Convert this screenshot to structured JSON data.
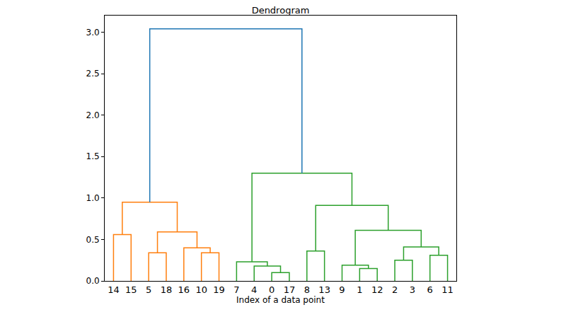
{
  "chart_data": {
    "type": "dendrogram",
    "title": "Dendrogram",
    "x_label": "Index of a data point",
    "categories": [
      "14",
      "15",
      "5",
      "18",
      "16",
      "10",
      "19",
      "7",
      "4",
      "0",
      "17",
      "8",
      "13",
      "9",
      "1",
      "12",
      "2",
      "3",
      "6",
      "11"
    ],
    "ylim": [
      0,
      3.2
    ],
    "yticks": [
      {
        "value": 0,
        "label": "0.0"
      },
      0.5,
      {
        "value": 1,
        "label": "1.0"
      },
      1.5,
      {
        "value": 2,
        "label": "2.0"
      },
      2.5,
      {
        "value": 3,
        "label": "3.0"
      }
    ],
    "grid": false,
    "tree": {
      "height": 3.04,
      "color": "#1f77b4",
      "children": [
        {
          "height": 0.95,
          "color": "#ff7f0e",
          "children": [
            {
              "height": 0.56,
              "color": "#ff7f0e",
              "children": [
                "14",
                "15"
              ]
            },
            {
              "height": 0.59,
              "color": "#ff7f0e",
              "children": [
                {
                  "height": 0.34,
                  "color": "#ff7f0e",
                  "children": [
                    "5",
                    "18"
                  ]
                },
                {
                  "height": 0.4,
                  "color": "#ff7f0e",
                  "children": [
                    "16",
                    {
                      "height": 0.34,
                      "color": "#ff7f0e",
                      "children": [
                        "10",
                        "19"
                      ]
                    }
                  ]
                }
              ]
            }
          ]
        },
        {
          "height": 1.3,
          "color": "#2ca02c",
          "children": [
            {
              "height": 0.23,
              "color": "#2ca02c",
              "children": [
                "7",
                {
                  "height": 0.18,
                  "color": "#2ca02c",
                  "children": [
                    "4",
                    {
                      "height": 0.1,
                      "color": "#2ca02c",
                      "children": [
                        "0",
                        "17"
                      ]
                    }
                  ]
                }
              ]
            },
            {
              "height": 0.91,
              "color": "#2ca02c",
              "children": [
                {
                  "height": 0.36,
                  "color": "#2ca02c",
                  "children": [
                    "8",
                    "13"
                  ]
                },
                {
                  "height": 0.61,
                  "color": "#2ca02c",
                  "children": [
                    {
                      "height": 0.19,
                      "color": "#2ca02c",
                      "children": [
                        "9",
                        {
                          "height": 0.15,
                          "color": "#2ca02c",
                          "children": [
                            "1",
                            "12"
                          ]
                        }
                      ]
                    },
                    {
                      "height": 0.41,
                      "color": "#2ca02c",
                      "children": [
                        {
                          "height": 0.25,
                          "color": "#2ca02c",
                          "children": [
                            "2",
                            "3"
                          ]
                        },
                        {
                          "height": 0.31,
                          "color": "#2ca02c",
                          "children": [
                            "6",
                            "11"
                          ]
                        }
                      ]
                    }
                  ]
                }
              ]
            }
          ]
        }
      ]
    }
  }
}
